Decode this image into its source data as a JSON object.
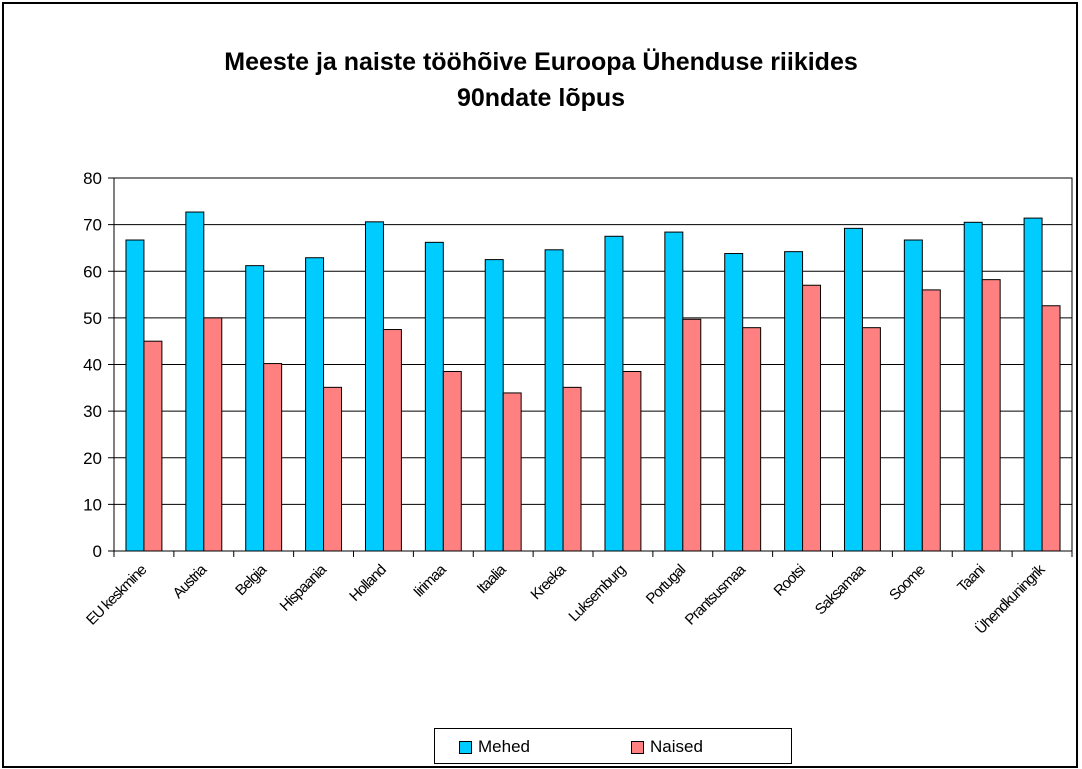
{
  "chart_data": {
    "type": "bar",
    "title": [
      "Meeste ja naiste tööhõive Euroopa Ühenduse riikides",
      "90ndate lõpus"
    ],
    "categories": [
      "EU keskmine",
      "Austria",
      "Belgia",
      "Hispaania",
      "Holland",
      "Iirimaa",
      "Itaalia",
      "Kreeka",
      "Luksemburg",
      "Portugal",
      "Prantsusmaa",
      "Rootsi",
      "Saksamaa",
      "Soome",
      "Taani",
      "Ühendkuningrik"
    ],
    "series": [
      {
        "name": "Mehed",
        "color": "#00ccff",
        "values": [
          66.7,
          72.7,
          61.2,
          62.9,
          70.6,
          66.2,
          62.5,
          64.6,
          67.5,
          68.4,
          63.8,
          64.2,
          69.2,
          66.7,
          70.5,
          71.4
        ]
      },
      {
        "name": "Naised",
        "color": "#ff8080",
        "values": [
          45.0,
          50.0,
          40.2,
          35.1,
          47.5,
          38.5,
          33.9,
          35.1,
          38.5,
          49.7,
          47.9,
          57.0,
          47.9,
          56.0,
          58.2,
          52.6
        ]
      }
    ],
    "ylim": [
      0,
      80
    ],
    "yticks": [
      0,
      10,
      20,
      30,
      40,
      50,
      60,
      70,
      80
    ],
    "grid": true,
    "legend_position": "bottom"
  }
}
